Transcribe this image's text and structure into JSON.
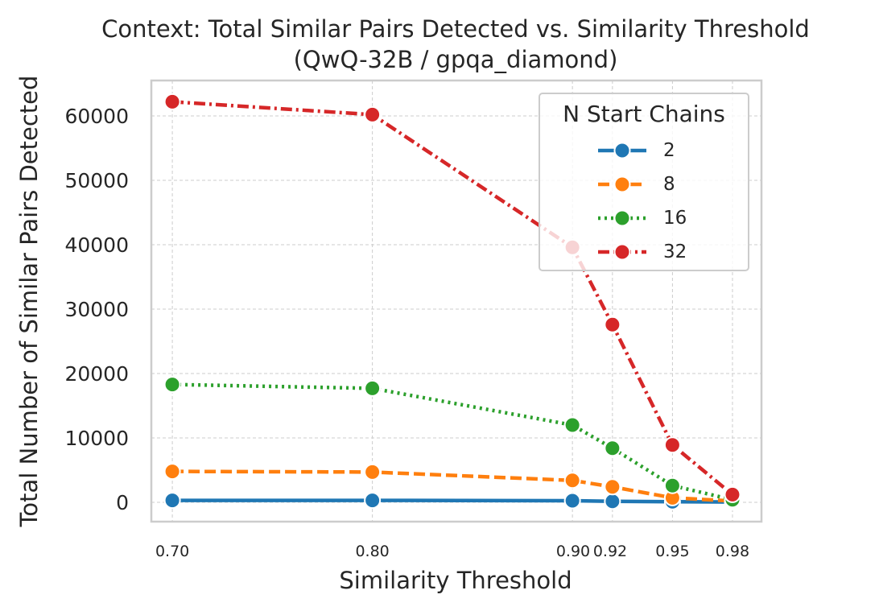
{
  "chart_data": {
    "type": "line",
    "title": "Context: Total Similar Pairs Detected vs. Similarity Threshold",
    "subtitle": "(QwQ-32B / gpqa_diamond)",
    "xlabel": "Similarity Threshold",
    "ylabel": "Total Number of Similar Pairs Detected",
    "x": [
      0.7,
      0.8,
      0.9,
      0.92,
      0.95,
      0.98
    ],
    "x_tick_labels": [
      "0.70",
      "0.80",
      "0.90",
      "0.92",
      "0.95",
      "0.98"
    ],
    "y_ticks": [
      0,
      10000,
      20000,
      30000,
      40000,
      50000,
      60000
    ],
    "y_tick_labels": [
      "0",
      "10000",
      "20000",
      "30000",
      "40000",
      "50000",
      "60000"
    ],
    "xlim": [
      0.6895,
      0.9945
    ],
    "ylim": [
      -3000,
      65500
    ],
    "grid": true,
    "legend": {
      "title": "N Start Chains",
      "placement": "top-right"
    },
    "series": [
      {
        "name": "2",
        "color": "#1f77b4",
        "dash": "solid",
        "values": [
          300,
          300,
          250,
          150,
          100,
          50
        ]
      },
      {
        "name": "8",
        "color": "#ff7f0e",
        "dash": "dashed",
        "values": [
          4800,
          4700,
          3400,
          2400,
          700,
          200
        ]
      },
      {
        "name": "16",
        "color": "#2ca02c",
        "dash": "dotted",
        "values": [
          18300,
          17700,
          12000,
          8400,
          2600,
          400
        ]
      },
      {
        "name": "32",
        "color": "#d62728",
        "dash": "dashdot",
        "values": [
          62200,
          60200,
          39600,
          27600,
          8900,
          1200
        ]
      }
    ]
  }
}
